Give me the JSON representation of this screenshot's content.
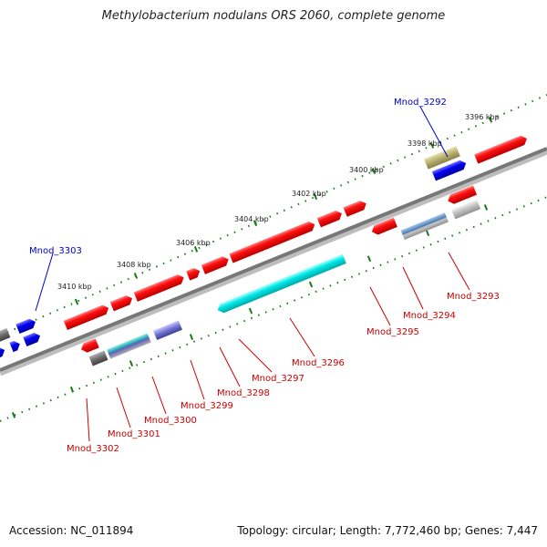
{
  "title": "Methylobacterium nodulans ORS 2060, complete genome",
  "accession": "Accession: NC_011894",
  "topology": "Topology: circular; Length: 7,772,460 bp; Genes: 7,447",
  "colors": {
    "label_red": "#cc0000",
    "label_blue": "#0000cc",
    "gene_red": "#ee0000",
    "gene_blue": "#0000ee",
    "gene_cyan": "#00e0e0",
    "gene_gray": "#b8b8b8",
    "gene_darkgray": "#707070",
    "gene_steel": "#4a7ab0",
    "gene_olive": "#b5ad6a",
    "gene_purple": "#7070d0",
    "tick_green": "#1a7a1a",
    "backbone": "#777777"
  },
  "scale_ticks": [
    "3396 kbp",
    "3398 kbp",
    "3400 kbp",
    "3402 kbp",
    "3404 kbp",
    "3406 kbp",
    "3408 kbp",
    "3410 kbp"
  ],
  "gene_labels_forward": [
    "Mnod_3292",
    "Mnod_3303"
  ],
  "gene_labels_reverse": [
    "Mnod_3293",
    "Mnod_3294",
    "Mnod_3295",
    "Mnod_3296",
    "Mnod_3297",
    "Mnod_3298",
    "Mnod_3299",
    "Mnod_3300",
    "Mnod_3301",
    "Mnod_3302"
  ]
}
